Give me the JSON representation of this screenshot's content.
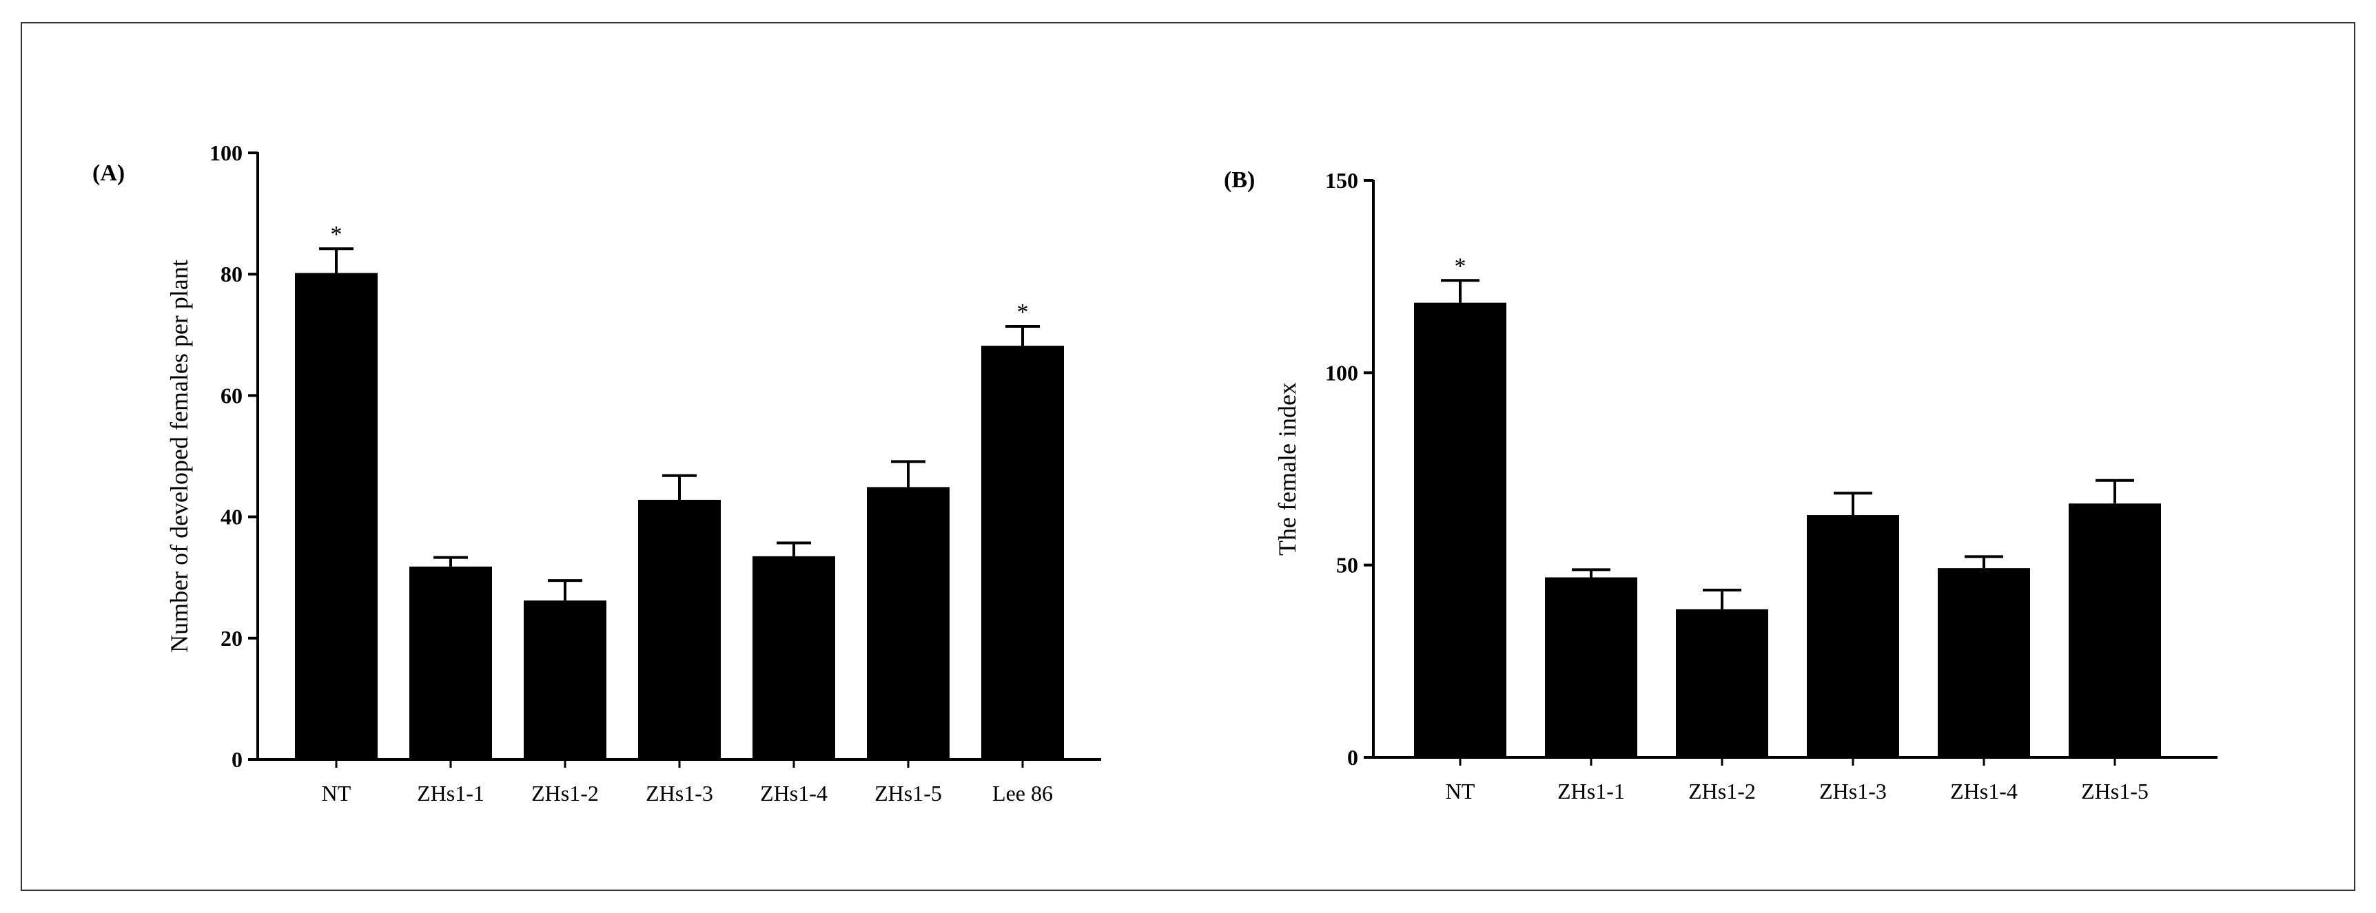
{
  "chart_data": [
    {
      "type": "bar",
      "panel_label": "(A)",
      "categories": [
        "NT",
        "ZHs1-1",
        "ZHs1-2",
        "ZHs1-3",
        "ZHs1-4",
        "ZHs1-5",
        "Lee 86"
      ],
      "values": [
        80.2,
        31.8,
        26.2,
        42.8,
        33.5,
        44.9,
        68.2
      ],
      "errors": [
        4.0,
        1.5,
        3.3,
        4.0,
        2.2,
        4.2,
        3.2
      ],
      "annotations": [
        "*",
        "",
        "",
        "",
        "",
        "",
        "*"
      ],
      "ylabel": "Number of developed females per plant",
      "xlabel": "",
      "ylim": [
        0,
        100
      ],
      "yticks": [
        0,
        20,
        40,
        60,
        80,
        100
      ],
      "bar_color": "#000000",
      "grid": false
    },
    {
      "type": "bar",
      "panel_label": "(B)",
      "categories": [
        "NT",
        "ZHs1-1",
        "ZHs1-2",
        "ZHs1-3",
        "ZHs1-4",
        "ZHs1-5"
      ],
      "values": [
        118.2,
        46.8,
        38.5,
        63.0,
        49.2,
        66.0
      ],
      "errors": [
        5.8,
        2.0,
        5.0,
        5.7,
        3.0,
        6.0
      ],
      "annotations": [
        "*",
        "",
        "",
        "",
        "",
        ""
      ],
      "ylabel": "The female index",
      "xlabel": "",
      "ylim": [
        0,
        150
      ],
      "yticks": [
        0,
        50,
        100,
        150
      ],
      "bar_color": "#000000",
      "grid": false
    }
  ]
}
